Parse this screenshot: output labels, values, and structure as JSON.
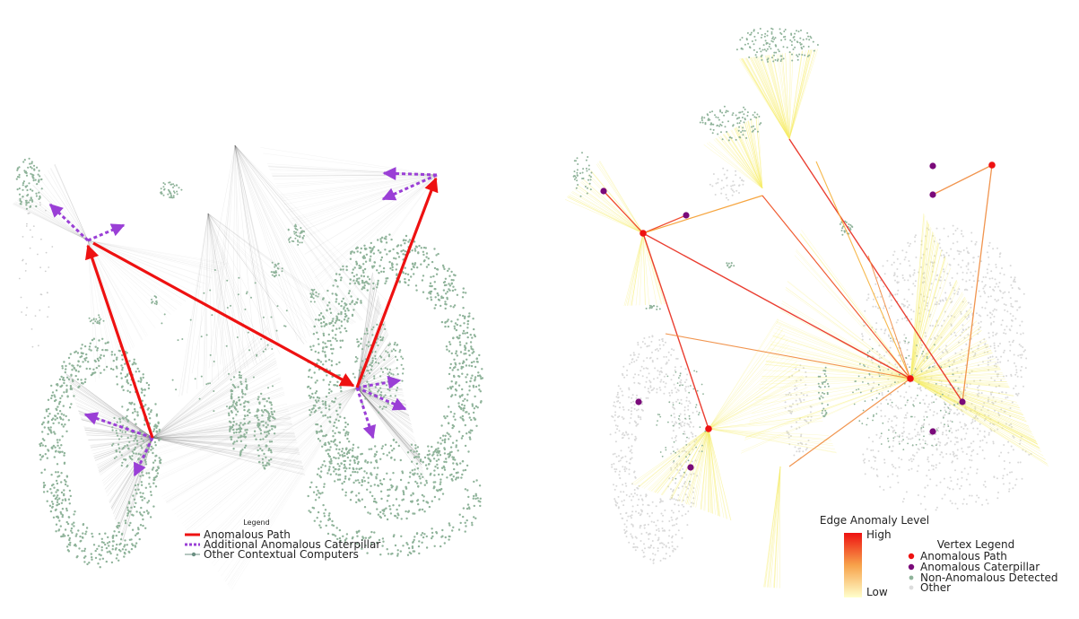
{
  "left_panel": {
    "legend": {
      "title": "Legend",
      "items": [
        {
          "label": "Anomalous Path",
          "color": "#ee1111",
          "style": "solid"
        },
        {
          "label": "Additional Anomalous Caterpillar",
          "color": "#9a3fd6",
          "style": "dotted"
        },
        {
          "label": "Other Contextual Computers",
          "color": "#6b8f82",
          "style": "dot-line"
        }
      ]
    }
  },
  "right_panel": {
    "colorbar": {
      "title": "Edge Anomaly Level",
      "high_label": "High",
      "low_label": "Low",
      "high_color": "#ee1111",
      "low_color": "#ffffcc"
    },
    "vertex_legend": {
      "title": "Vertex Legend",
      "items": [
        {
          "label": "Anomalous Path",
          "color": "#ee1111"
        },
        {
          "label": "Anomalous Caterpillar",
          "color": "#7a0a7a"
        },
        {
          "label": "Non-Anomalous Detected",
          "color": "#8fb39a"
        },
        {
          "label": "Other",
          "color": "#dddddd"
        }
      ]
    }
  },
  "colors": {
    "cluster_green": "#8fb39a",
    "context_edge": "#555555",
    "anomalous_red": "#ee1111",
    "caterpillar_purple": "#9a3fd6",
    "vertex_purple": "#7a0a7a",
    "edge_yellow": "#f7ee6a",
    "edge_orange": "#f08a3c",
    "other_gray": "#d9d9d9"
  }
}
